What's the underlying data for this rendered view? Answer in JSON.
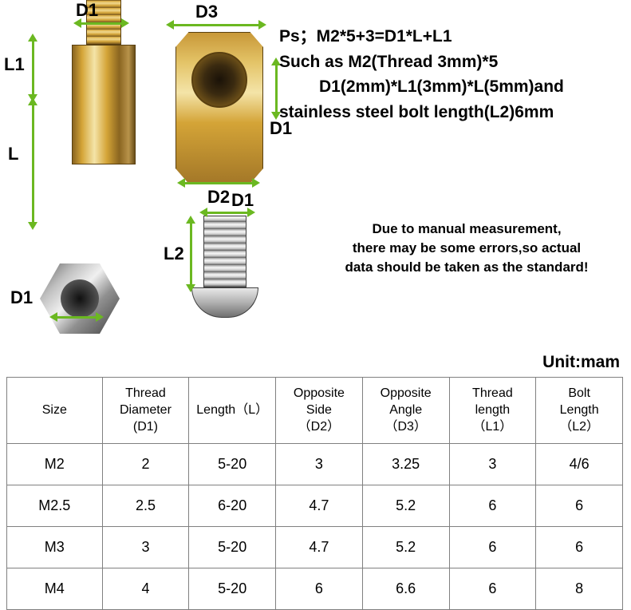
{
  "labels": {
    "D1_top": "D1",
    "D3": "D3",
    "L1": "L1",
    "L": "L",
    "D1_inner": "D1",
    "D2": "D2",
    "D1_bolt": "D1",
    "L2": "L2",
    "D1_nut": "D1"
  },
  "description": {
    "line1": "Ps；M2*5+3=D1*L+L1",
    "line2": "Such as M2(Thread 3mm)*5",
    "line3": "D1(2mm)*L1(3mm)*L(5mm)and",
    "line4": "stainless steel bolt length(L2)6mm"
  },
  "disclaimer": {
    "line1": "Due to manual measurement,",
    "line2": "there may be some errors,so actual",
    "line3": "data should be taken as the standard!"
  },
  "unit": "Unit:mam",
  "table": {
    "headers": [
      "Size",
      "Thread\nDiameter\n(D1)",
      "Length（L）",
      "Opposite\nSide\n（D2）",
      "Opposite\nAngle\n（D3）",
      "Thread\nlength\n（L1）",
      "Bolt\nLength\n（L2）"
    ],
    "rows": [
      [
        "M2",
        "2",
        "5-20",
        "3",
        "3.25",
        "3",
        "4/6"
      ],
      [
        "M2.5",
        "2.5",
        "6-20",
        "4.7",
        "5.2",
        "6",
        "6"
      ],
      [
        "M3",
        "3",
        "5-20",
        "4.7",
        "5.2",
        "6",
        "6"
      ],
      [
        "M4",
        "4",
        "5-20",
        "6",
        "6.6",
        "6",
        "8"
      ]
    ]
  },
  "colors": {
    "arrow": "#6bb821",
    "brass_primary": "#d4a437",
    "brass_light": "#f4e4a8",
    "brass_dark": "#8a6520",
    "steel_primary": "#b0b0b0",
    "steel_light": "#f0f0f0",
    "steel_dark": "#606060",
    "table_border": "#808080"
  },
  "diagram": {
    "standoff": {
      "body_w": 80,
      "body_h": 150,
      "thread_w": 44,
      "thread_h": 60
    },
    "topview": {
      "hex_w": 110,
      "hex_h": 190,
      "hole_d": 70
    },
    "nut": {
      "hex_w": 100,
      "hex_h": 88,
      "hole_d": 48
    },
    "bolt": {
      "thread_w": 54,
      "thread_h": 90,
      "head_w": 84,
      "head_h": 38
    }
  }
}
